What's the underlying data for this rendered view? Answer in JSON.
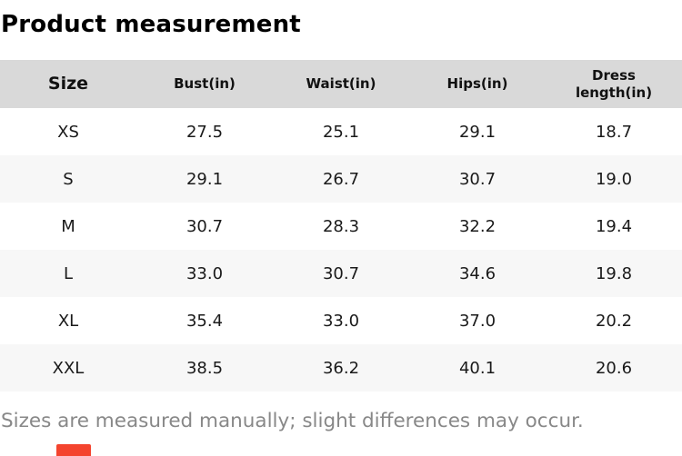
{
  "title": "Product measurement",
  "table": {
    "headers": [
      "Size",
      "Bust(in)",
      "Waist(in)",
      "Hips(in)",
      "Dress length(in)"
    ],
    "rows": [
      [
        "XS",
        "27.5",
        "25.1",
        "29.1",
        "18.7"
      ],
      [
        "S",
        "29.1",
        "26.7",
        "30.7",
        "19.0"
      ],
      [
        "M",
        "30.7",
        "28.3",
        "32.2",
        "19.4"
      ],
      [
        "L",
        "33.0",
        "30.7",
        "34.6",
        "19.8"
      ],
      [
        "XL",
        "35.4",
        "33.0",
        "37.0",
        "20.2"
      ],
      [
        "XXL",
        "38.5",
        "36.2",
        "40.1",
        "20.6"
      ]
    ]
  },
  "footer": {
    "note": "Sizes are measured manually; slight differences may occur."
  },
  "colors": {
    "header_bg": "#d9d9d9",
    "row_alt_bg": "#f7f7f7",
    "footer_text": "#888888",
    "accent_red": "#f4442e"
  }
}
